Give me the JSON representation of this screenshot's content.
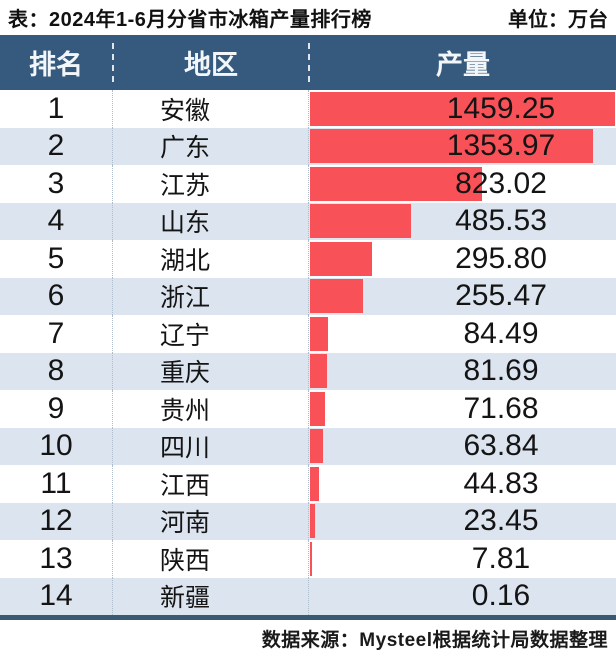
{
  "meta": {
    "title": "表：2024年1-6月分省市冰箱产量排行榜",
    "unit_label": "单位：万台",
    "source": "数据来源：Mysteel根据统计局数据整理"
  },
  "table": {
    "columns": [
      "排名",
      "地区",
      "产量"
    ],
    "rows": [
      {
        "rank": "1",
        "region": "安徽",
        "value": "1459.25"
      },
      {
        "rank": "2",
        "region": "广东",
        "value": "1353.97"
      },
      {
        "rank": "3",
        "region": "江苏",
        "value": "823.02"
      },
      {
        "rank": "4",
        "region": "山东",
        "value": "485.53"
      },
      {
        "rank": "5",
        "region": "湖北",
        "value": "295.80"
      },
      {
        "rank": "6",
        "region": "浙江",
        "value": "255.47"
      },
      {
        "rank": "7",
        "region": "辽宁",
        "value": "84.49"
      },
      {
        "rank": "8",
        "region": "重庆",
        "value": "81.69"
      },
      {
        "rank": "9",
        "region": "贵州",
        "value": "71.68"
      },
      {
        "rank": "10",
        "region": "四川",
        "value": "63.84"
      },
      {
        "rank": "11",
        "region": "江西",
        "value": "44.83"
      },
      {
        "rank": "12",
        "region": "河南",
        "value": "23.45"
      },
      {
        "rank": "13",
        "region": "陕西",
        "value": "7.81"
      },
      {
        "rank": "14",
        "region": "新疆",
        "value": "0.16"
      }
    ]
  },
  "colors": {
    "header_bg": "#36597E",
    "header_text": "#F2F6F9",
    "bar": "#F85157",
    "row_alt_bg": "#DCE5EF",
    "row_bg": "#FFFFFF",
    "bottom_rule": "#3A5A73",
    "text": "#141414"
  },
  "chart_data": {
    "type": "bar",
    "orientation": "horizontal",
    "title": "2024年1-6月分省市冰箱产量排行榜",
    "unit": "万台",
    "xlabel": "产量",
    "ylabel": "地区",
    "categories": [
      "安徽",
      "广东",
      "江苏",
      "山东",
      "湖北",
      "浙江",
      "辽宁",
      "重庆",
      "贵州",
      "四川",
      "江西",
      "河南",
      "陕西",
      "新疆"
    ],
    "values": [
      1459.25,
      1353.97,
      823.02,
      485.53,
      295.8,
      255.47,
      84.49,
      81.69,
      71.68,
      63.84,
      44.83,
      23.45,
      7.81,
      0.16
    ],
    "max_value": 1459.25,
    "xlim": [
      0,
      1459.25
    ],
    "grid": false,
    "legend": false,
    "source": "Mysteel根据统计局数据整理"
  }
}
